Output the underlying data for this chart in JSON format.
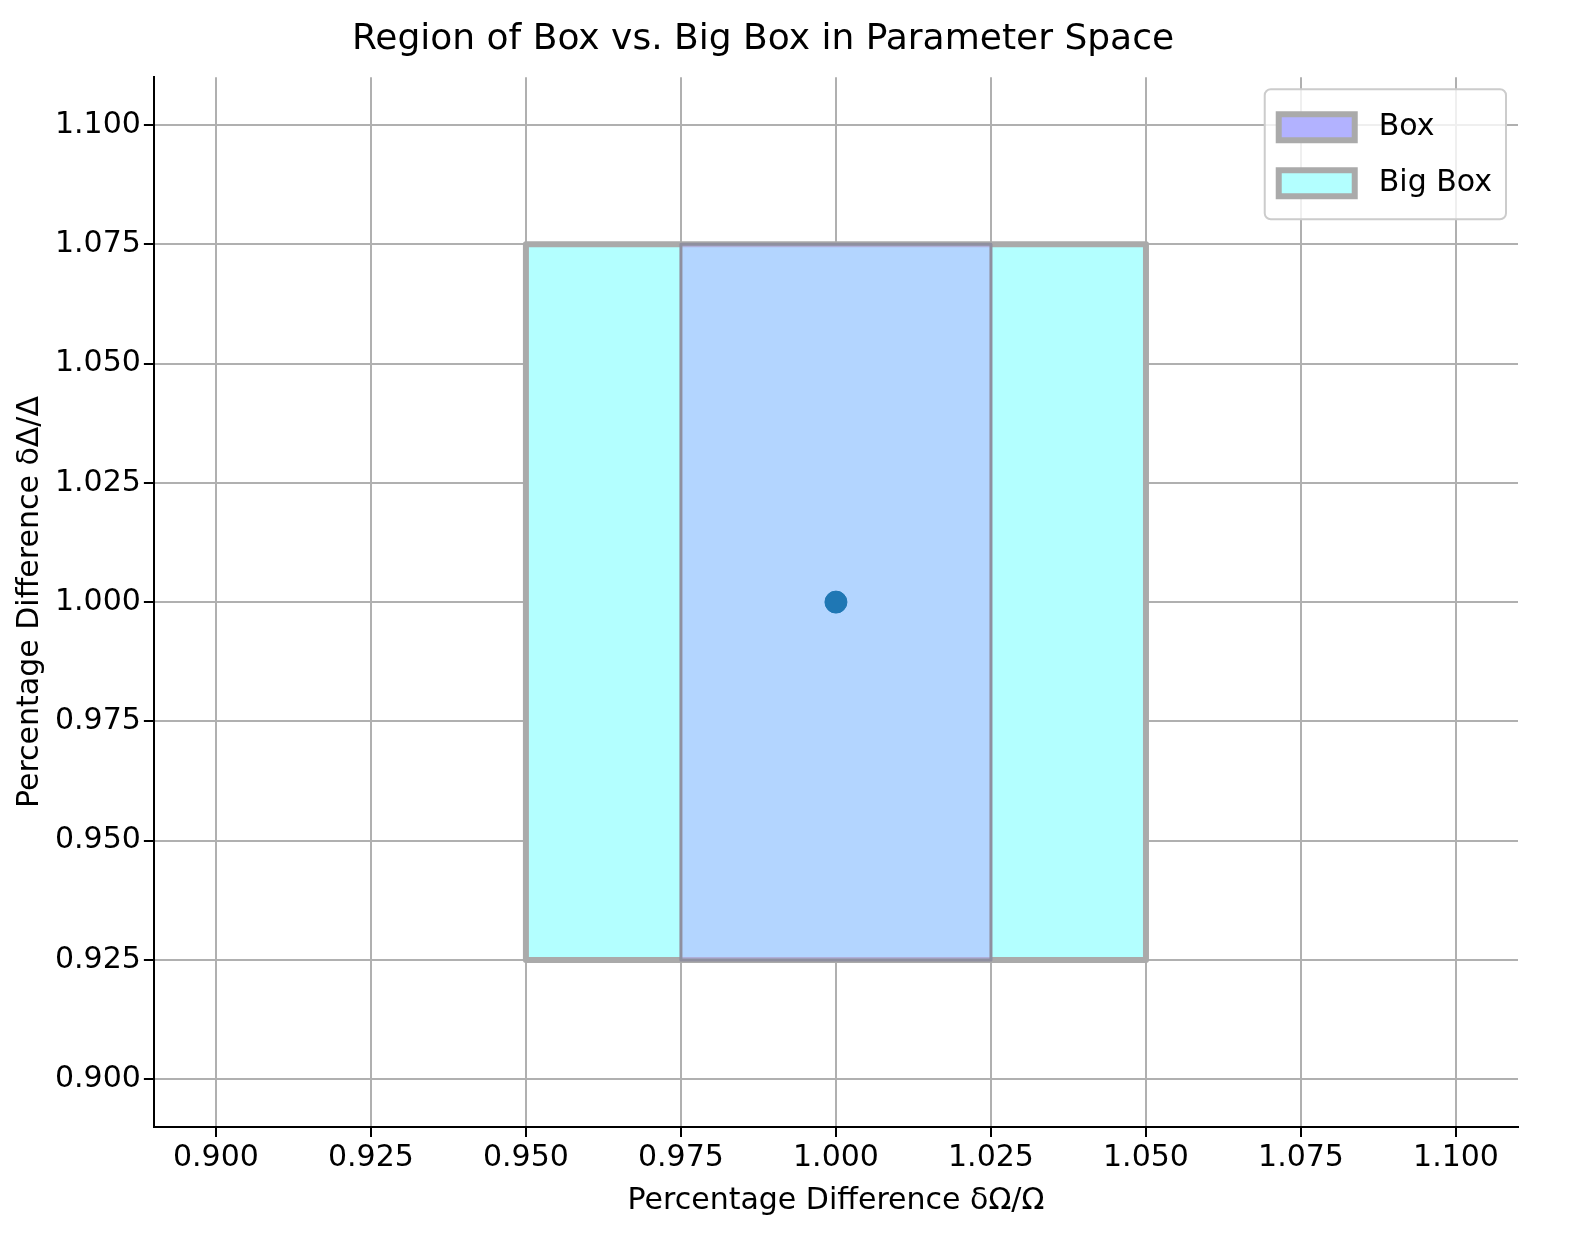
{
  "chart_data": {
    "type": "area",
    "title": "Region of Box vs. Big Box in Parameter Space",
    "xlabel": "Percentage Difference δΩ/Ω",
    "ylabel": "Percentage Difference δΔ/Δ",
    "series": [
      {
        "name": "Box",
        "color": "#b2b2ff",
        "x": [
          0.975,
          1.025,
          1.025,
          0.975,
          0.975
        ],
        "values": [
          0.925,
          0.925,
          1.075,
          1.075,
          0.925
        ]
      },
      {
        "name": "Big Box",
        "color": "#b3ffff",
        "x": [
          0.95,
          1.05,
          1.05,
          0.95,
          0.95
        ],
        "values": [
          0.925,
          0.925,
          1.075,
          1.075,
          0.925
        ]
      },
      {
        "type": "scatter",
        "marker": "circle",
        "color": "#1f77b4",
        "x": [
          1.0
        ],
        "values": [
          1.0
        ]
      }
    ],
    "xlim": [
      0.89,
      1.11
    ],
    "ylim": [
      0.89,
      1.11
    ],
    "xticks": [
      {
        "value": 0.9,
        "label": "0.900"
      },
      {
        "value": 0.925,
        "label": "0.925"
      },
      {
        "value": 0.95,
        "label": "0.950"
      },
      {
        "value": 0.975,
        "label": "0.975"
      },
      {
        "value": 1.0,
        "label": "1.000"
      },
      {
        "value": 1.025,
        "label": "1.025"
      },
      {
        "value": 1.05,
        "label": "1.050"
      },
      {
        "value": 1.075,
        "label": "1.075"
      },
      {
        "value": 1.1,
        "label": "1.100"
      }
    ],
    "yticks": [
      {
        "value": 0.9,
        "label": "0.900"
      },
      {
        "value": 0.925,
        "label": "0.925"
      },
      {
        "value": 0.95,
        "label": "0.950"
      },
      {
        "value": 0.975,
        "label": "0.975"
      },
      {
        "value": 1.0,
        "label": "1.000"
      },
      {
        "value": 1.025,
        "label": "1.025"
      },
      {
        "value": 1.05,
        "label": "1.050"
      },
      {
        "value": 1.075,
        "label": "1.075"
      },
      {
        "value": 1.1,
        "label": "1.100"
      }
    ],
    "grid": true,
    "legend": "top right"
  }
}
